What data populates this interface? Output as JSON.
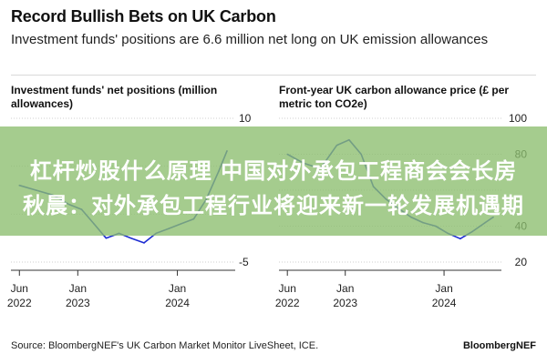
{
  "header": {
    "title": "Record Bullish Bets on UK Carbon",
    "subtitle": "Investment funds' positions are 6.6 million net long on UK emission allowances"
  },
  "footer": {
    "source": "Source: BloombergNEF's UK Carbon Market Monitor LiveSheet, ICE.",
    "brand": "BloombergNEF"
  },
  "banner": {
    "line1": "杠杆炒股什么原理 中国对外承包工程商会会长房",
    "line2": "秋晨：对外承包工程行业将迎来新一轮发展机遇期"
  },
  "chart_data": [
    {
      "type": "line",
      "title": "Investment funds' net positions (million allowances)",
      "color": "#1e2dd2",
      "ylim": [
        -5,
        10
      ],
      "yticks": [
        10,
        5,
        0,
        -5
      ],
      "yticks_visible_labels": [
        "10",
        "",
        "",
        "-5"
      ],
      "xlim": [
        "2022-05-01",
        "2024-07-31"
      ],
      "xticks": [
        {
          "date": "2022-06-01",
          "label1": "Jun",
          "label2": "2022"
        },
        {
          "date": "2023-01-01",
          "label1": "Jan",
          "label2": "2023"
        },
        {
          "date": "2024-01-01",
          "label1": "Jan",
          "label2": "2024"
        }
      ],
      "grid": true,
      "x": [
        "2022-06-01",
        "2022-08-01",
        "2022-10-01",
        "2022-12-01",
        "2023-01-15",
        "2023-03-01",
        "2023-04-15",
        "2023-06-01",
        "2023-07-15",
        "2023-09-01",
        "2023-10-15",
        "2023-12-01",
        "2024-01-15",
        "2024-03-01",
        "2024-04-15",
        "2024-06-01",
        "2024-07-01"
      ],
      "values": [
        3.0,
        2.5,
        2.0,
        1.0,
        0.5,
        -1.0,
        -2.5,
        -2.0,
        -2.5,
        -3.0,
        -2.0,
        -1.5,
        -1.0,
        -0.5,
        1.5,
        4.5,
        6.6
      ]
    },
    {
      "type": "line",
      "title": "Front-year UK carbon allowance price (£ per metric ton CO2e)",
      "color": "#1e2dd2",
      "ylim": [
        20,
        100
      ],
      "yticks": [
        100,
        80,
        60,
        40,
        20
      ],
      "yticks_visible_labels": [
        "100",
        "80",
        "",
        "40",
        "20"
      ],
      "xlim": [
        "2022-05-01",
        "2024-07-31"
      ],
      "xticks": [
        {
          "date": "2022-06-01",
          "label1": "Jun",
          "label2": "2022"
        },
        {
          "date": "2023-01-01",
          "label1": "Jan",
          "label2": "2023"
        },
        {
          "date": "2024-01-01",
          "label1": "Jan",
          "label2": "2024"
        }
      ],
      "grid": true,
      "x": [
        "2022-06-01",
        "2022-08-01",
        "2022-10-01",
        "2022-12-01",
        "2023-01-15",
        "2023-03-01",
        "2023-04-15",
        "2023-06-01",
        "2023-07-15",
        "2023-09-01",
        "2023-10-15",
        "2023-12-01",
        "2024-01-15",
        "2024-03-01",
        "2024-04-15",
        "2024-06-01",
        "2024-07-01"
      ],
      "values": [
        80,
        75,
        72,
        85,
        88,
        80,
        62,
        55,
        50,
        45,
        42,
        40,
        36,
        33,
        37,
        42,
        45
      ]
    }
  ]
}
